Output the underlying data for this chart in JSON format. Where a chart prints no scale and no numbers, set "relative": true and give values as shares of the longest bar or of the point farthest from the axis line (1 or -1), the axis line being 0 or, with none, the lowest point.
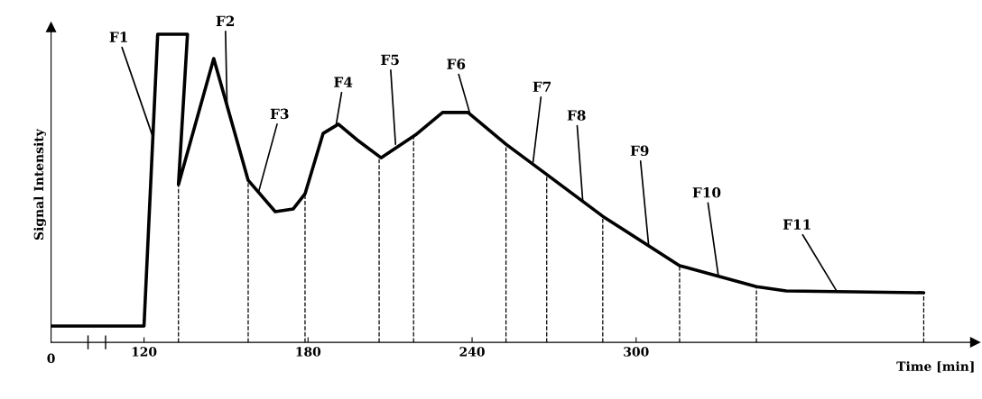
{
  "chart_data": {
    "type": "line",
    "xlabel": "Time [min]",
    "ylabel": "Signal Intensity",
    "relative": true,
    "xlim": [
      86,
      424
    ],
    "xticks": [
      120,
      180,
      240,
      300
    ],
    "series": [
      {
        "color": "#000000",
        "x": [
          86,
          120,
          125.0,
          135.9,
          132.6,
          145.5,
          158.1,
          168.0,
          174.6,
          178.9,
          185.5,
          191.1,
          197.8,
          206.7,
          219.3,
          229.2,
          238.5,
          252.4,
          265.6,
          287.8,
          315.9,
          344.0,
          354.9,
          405.2
        ],
        "values": [
          0.053,
          0.053,
          1.0,
          1.0,
          0.512,
          0.921,
          0.526,
          0.424,
          0.433,
          0.482,
          0.678,
          0.708,
          0.658,
          0.599,
          0.673,
          0.746,
          0.746,
          0.643,
          0.556,
          0.409,
          0.249,
          0.181,
          0.167,
          0.161
        ]
      }
    ],
    "ref_lines": [
      {
        "axis": "x",
        "value": 132.6,
        "line_style": "dashed"
      },
      {
        "axis": "x",
        "value": 158.1,
        "line_style": "dashed"
      },
      {
        "axis": "x",
        "value": 178.9,
        "line_style": "dashed"
      },
      {
        "axis": "x",
        "value": 206.0,
        "line_style": "dashed"
      },
      {
        "axis": "x",
        "value": 218.6,
        "line_style": "dashed"
      },
      {
        "axis": "x",
        "value": 252.4,
        "line_style": "dashed"
      },
      {
        "axis": "x",
        "value": 267.3,
        "line_style": "dashed"
      },
      {
        "axis": "x",
        "value": 287.8,
        "line_style": "dashed"
      },
      {
        "axis": "x",
        "value": 315.9,
        "line_style": "dashed"
      },
      {
        "axis": "x",
        "value": 344.0,
        "line_style": "dashed"
      },
      {
        "axis": "x",
        "value": 405.2,
        "line_style": "dashed"
      }
    ],
    "annotations": [
      "0",
      {
        "text": "F1",
        "x": 123,
        "y": 0.673
      },
      {
        "text": "F2",
        "x": 150.4,
        "y": 0.76
      },
      {
        "text": "F3",
        "x": 162.0,
        "y": 0.491
      },
      {
        "text": "F4",
        "x": 190.2,
        "y": 0.702
      },
      {
        "text": "F5",
        "x": 212.0,
        "y": 0.643
      },
      {
        "text": "F6",
        "x": 239.1,
        "y": 0.746
      },
      {
        "text": "F7",
        "x": 262.3,
        "y": 0.585
      },
      {
        "text": "F8",
        "x": 280.5,
        "y": 0.457
      },
      {
        "text": "F9",
        "x": 304.6,
        "y": 0.313
      },
      {
        "text": "F10",
        "x": 330.1,
        "y": 0.215
      },
      {
        "text": "F11",
        "x": 373.1,
        "y": 0.17
      }
    ],
    "grid": false,
    "marker": "none",
    "line_style": "solid"
  }
}
